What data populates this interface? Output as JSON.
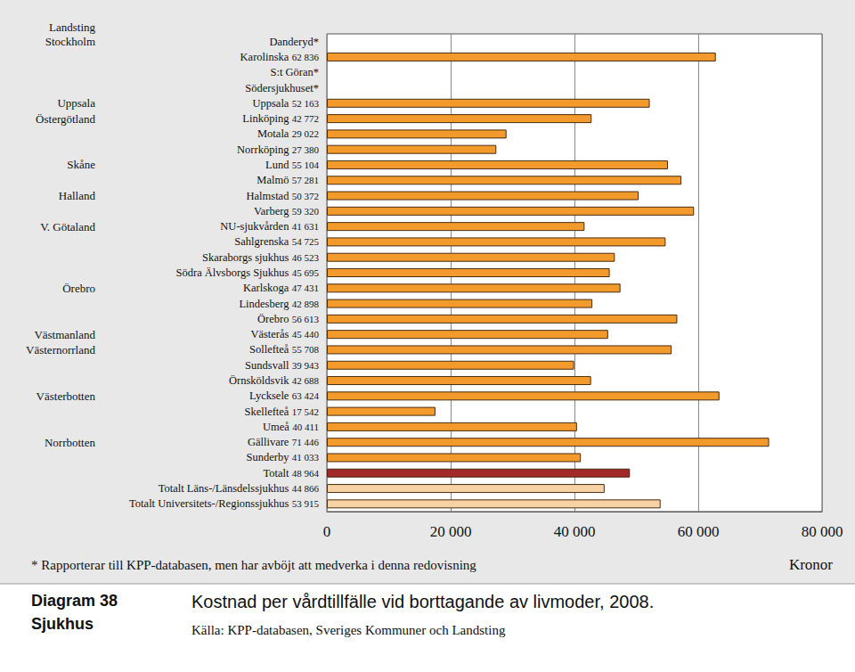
{
  "chart_data": {
    "type": "bar",
    "orientation": "horizontal",
    "diagram_label": "Diagram 38",
    "section": "Sjukhus",
    "title": "Kostnad per vårdtillfälle vid borttagande av livmoder, 2008.",
    "source": "Källa: KPP-databasen, Sveriges Kommuner och Landsting",
    "footnote": "* Rapporterar till KPP-databasen, men har avböjt att medverka i denna redovisning",
    "x_label": "Kronor",
    "group_header": "Landsting",
    "groups": [
      "Stockholm",
      null,
      null,
      null,
      "Uppsala",
      "Östergötland",
      null,
      null,
      "Skåne",
      null,
      "Halland",
      null,
      "V. Götaland",
      null,
      null,
      null,
      "Örebro",
      null,
      null,
      "Västmanland",
      "Västernorrland",
      null,
      null,
      "Västerbotten",
      null,
      null,
      "Norrbotten",
      null,
      null,
      null,
      null
    ],
    "categories": [
      "Danderyd*",
      "Karolinska",
      "S:t Göran*",
      "Södersjukhuset*",
      "Uppsala",
      "Linköping",
      "Motala",
      "Norrköping",
      "Lund",
      "Malmö",
      "Halmstad",
      "Varberg",
      "NU-sjukvården",
      "Sahlgrenska",
      "Skaraborgs sjukhus",
      "Södra Älvsborgs Sjukhus",
      "Karlskoga",
      "Lindesberg",
      "Örebro",
      "Västerås",
      "Sollefteå",
      "Sundsvall",
      "Örnsköldsvik",
      "Lycksele",
      "Skellefteå",
      "Umeå",
      "Gällivare",
      "Sunderby",
      "Totalt",
      "Totalt Läns-/Länsdelssjukhus",
      "Totalt Universitets-/Regionssjukhus"
    ],
    "values": [
      null,
      62836,
      null,
      null,
      52163,
      42772,
      29022,
      27380,
      55104,
      57281,
      50372,
      59320,
      41631,
      54725,
      46523,
      45695,
      47431,
      42898,
      56613,
      45440,
      55708,
      39943,
      42688,
      63424,
      17542,
      40411,
      71446,
      41033,
      48964,
      44866,
      53915
    ],
    "value_labels": [
      null,
      "62 836",
      null,
      null,
      "52 163",
      "42 772",
      "29 022",
      "27 380",
      "55 104",
      "57 281",
      "50 372",
      "59 320",
      "41 631",
      "54 725",
      "46 523",
      "45 695",
      "47 431",
      "42 898",
      "56 613",
      "45 440",
      "55 708",
      "39 943",
      "42 688",
      "63 424",
      "17 542",
      "40 411",
      "71 446",
      "41 033",
      "48 964",
      "44 866",
      "53 915"
    ],
    "colors": [
      "#f39a2c",
      "#f39a2c",
      "#f39a2c",
      "#f39a2c",
      "#f39a2c",
      "#f39a2c",
      "#f39a2c",
      "#f39a2c",
      "#f39a2c",
      "#f39a2c",
      "#f39a2c",
      "#f39a2c",
      "#f39a2c",
      "#f39a2c",
      "#f39a2c",
      "#f39a2c",
      "#f39a2c",
      "#f39a2c",
      "#f39a2c",
      "#f39a2c",
      "#f39a2c",
      "#f39a2c",
      "#f39a2c",
      "#f39a2c",
      "#f39a2c",
      "#f39a2c",
      "#f39a2c",
      "#f39a2c",
      "#a3282a",
      "#f6d2a4",
      "#f6d2a4"
    ],
    "xlim": [
      0,
      80000
    ],
    "xticks": [
      0,
      {
        "value": 20000,
        "label": "20 000"
      },
      {
        "value": 40000,
        "label": "40 000"
      },
      {
        "value": 60000,
        "label": "60 000"
      },
      {
        "value": 80000,
        "label": "80 000"
      }
    ],
    "grid": true
  }
}
